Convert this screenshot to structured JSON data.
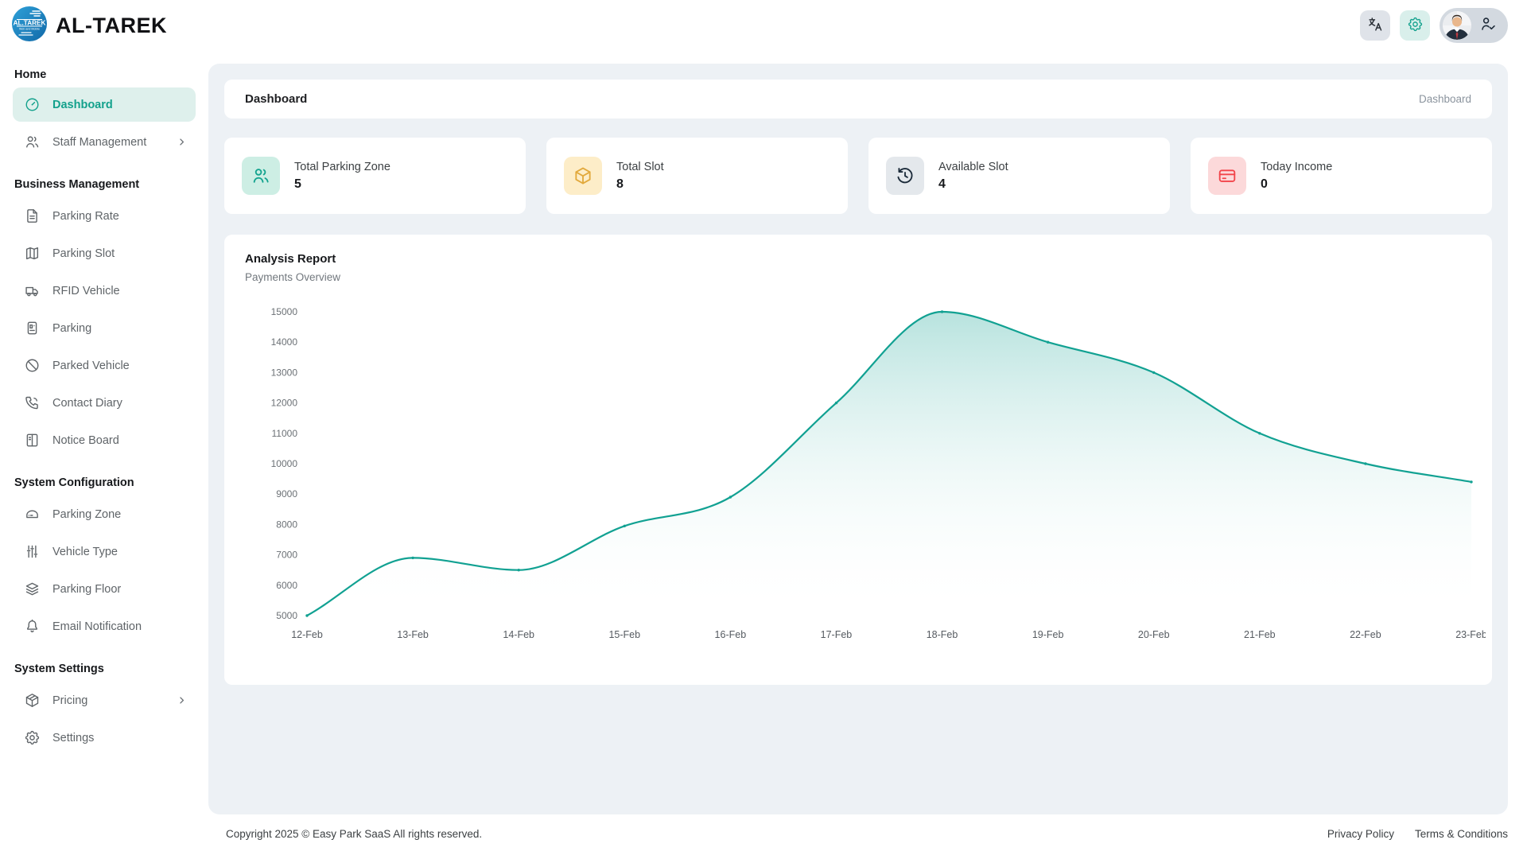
{
  "brand": {
    "name": "AL-TAREK",
    "logo_text": "AL.TAREK",
    "logo_sub": "Web and Mobile"
  },
  "topbar": {
    "buttons": [
      {
        "icon": "translate",
        "name": "language-button"
      },
      {
        "icon": "gear",
        "name": "settings-button"
      }
    ],
    "user": {
      "icon": "person-check",
      "name": "user-menu"
    }
  },
  "sidebar": {
    "sections": [
      {
        "title": "Home",
        "items": [
          {
            "label": "Dashboard",
            "icon": "gauge",
            "active": true
          },
          {
            "label": "Staff Management",
            "icon": "users",
            "chevron": true
          }
        ]
      },
      {
        "title": "Business Management",
        "items": [
          {
            "label": "Parking Rate",
            "icon": "file-text"
          },
          {
            "label": "Parking Slot",
            "icon": "map"
          },
          {
            "label": "RFID Vehicle",
            "icon": "truck"
          },
          {
            "label": "Parking",
            "icon": "parking-meter"
          },
          {
            "label": "Parked Vehicle",
            "icon": "ban"
          },
          {
            "label": "Contact Diary",
            "icon": "phone"
          },
          {
            "label": "Notice Board",
            "icon": "notice-board"
          }
        ]
      },
      {
        "title": "System Configuration",
        "items": [
          {
            "label": "Parking Zone",
            "icon": "zone-box"
          },
          {
            "label": "Vehicle Type",
            "icon": "sliders"
          },
          {
            "label": "Parking Floor",
            "icon": "layers"
          },
          {
            "label": "Email Notification",
            "icon": "bell"
          }
        ]
      },
      {
        "title": "System Settings",
        "items": [
          {
            "label": "Pricing",
            "icon": "package",
            "chevron": true
          },
          {
            "label": "Settings",
            "icon": "gear"
          }
        ]
      }
    ]
  },
  "header": {
    "title": "Dashboard",
    "breadcrumb": "Dashboard"
  },
  "stats": [
    {
      "label": "Total Parking Zone",
      "value": "5",
      "icon": "users",
      "icon_color": "#14a48f",
      "icon_bg": "#cdeee4"
    },
    {
      "label": "Total Slot",
      "value": "8",
      "icon": "box",
      "icon_color": "#e2a93c",
      "icon_bg": "#fdedc8"
    },
    {
      "label": "Available Slot",
      "value": "4",
      "icon": "history",
      "icon_color": "#1c2b3a",
      "icon_bg": "#e4e8ec"
    },
    {
      "label": "Today Income",
      "value": "0",
      "icon": "credit-card",
      "icon_color": "#f2444a",
      "icon_bg": "#fcd9da"
    }
  ],
  "chart_card": {
    "title": "Analysis Report",
    "subtitle": "Payments Overview"
  },
  "chart_data": {
    "type": "area",
    "x": [
      "12-Feb",
      "13-Feb",
      "14-Feb",
      "15-Feb",
      "16-Feb",
      "17-Feb",
      "18-Feb",
      "19-Feb",
      "20-Feb",
      "21-Feb",
      "22-Feb",
      "23-Feb"
    ],
    "series": [
      {
        "name": "Payments",
        "values": [
          5000,
          6900,
          6500,
          7950,
          8900,
          12000,
          15000,
          14000,
          13000,
          11000,
          10000,
          9400
        ]
      }
    ],
    "title": "Analysis Report",
    "subtitle": "Payments Overview",
    "xlabel": "",
    "ylabel": "",
    "ylim": [
      5000,
      15000
    ],
    "ytick_step": 1000,
    "grid": false,
    "legend": false,
    "smooth": true,
    "line_color": "#11a192",
    "fill_top_opacity": 0.3,
    "axis_label_color": "#6b7075"
  },
  "footer": {
    "copyright": "Copyright 2025 © Easy Park SaaS All rights reserved.",
    "links": [
      "Privacy Policy",
      "Terms & Conditions"
    ]
  },
  "colors": {
    "accent": "#13a18c",
    "panel_bg": "#edf1f5",
    "active_item_bg": "#def0ec"
  }
}
